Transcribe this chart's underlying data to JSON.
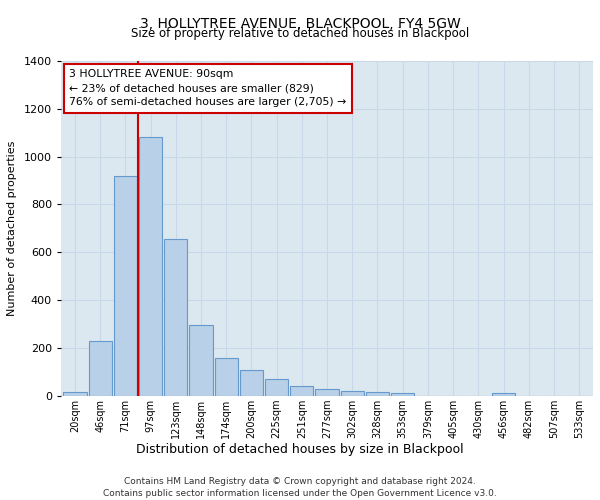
{
  "title": "3, HOLLYTREE AVENUE, BLACKPOOL, FY4 5GW",
  "subtitle": "Size of property relative to detached houses in Blackpool",
  "xlabel": "Distribution of detached houses by size in Blackpool",
  "ylabel": "Number of detached properties",
  "bar_labels": [
    "20sqm",
    "46sqm",
    "71sqm",
    "97sqm",
    "123sqm",
    "148sqm",
    "174sqm",
    "200sqm",
    "225sqm",
    "251sqm",
    "277sqm",
    "302sqm",
    "328sqm",
    "353sqm",
    "379sqm",
    "405sqm",
    "430sqm",
    "456sqm",
    "482sqm",
    "507sqm",
    "533sqm"
  ],
  "bar_values": [
    15,
    230,
    920,
    1080,
    655,
    295,
    160,
    108,
    72,
    42,
    28,
    22,
    15,
    10,
    0,
    0,
    0,
    12,
    0,
    0,
    0
  ],
  "bar_color": "#b8d0e8",
  "bar_edge_color": "#6699cc",
  "property_line_x": 2.5,
  "property_line_label": "3 HOLLYTREE AVENUE: 90sqm",
  "annotation_line1": "← 23% of detached houses are smaller (829)",
  "annotation_line2": "76% of semi-detached houses are larger (2,705) →",
  "annotation_box_color": "#ffffff",
  "annotation_box_edge": "#cc0000",
  "vline_color": "#cc0000",
  "ylim": [
    0,
    1400
  ],
  "yticks": [
    0,
    200,
    400,
    600,
    800,
    1000,
    1200,
    1400
  ],
  "grid_color": "#c8d8e8",
  "background_color": "#dce8f0",
  "footer_line1": "Contains HM Land Registry data © Crown copyright and database right 2024.",
  "footer_line2": "Contains public sector information licensed under the Open Government Licence v3.0."
}
